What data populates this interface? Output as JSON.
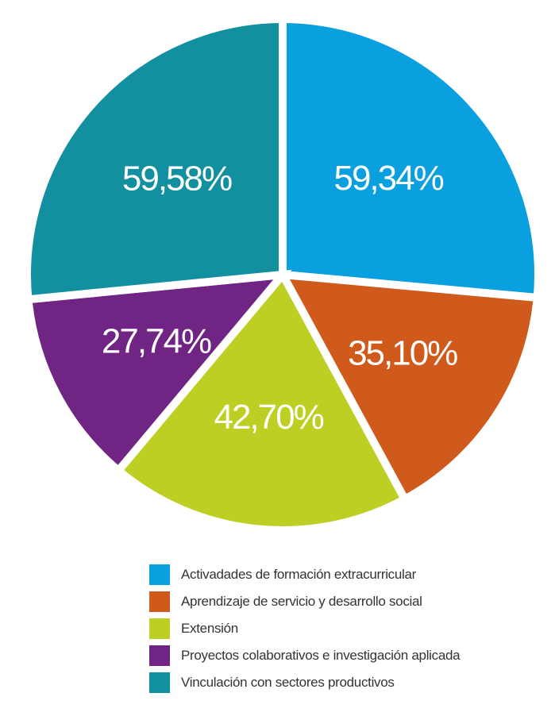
{
  "chart_data": {
    "type": "pie",
    "title": "",
    "categories": [
      "Activadades de formación extracurricular",
      "Aprendizaje de servicio y desarrollo social",
      "Extensión",
      "Proyectos colaborativos e investigación aplicada",
      "Vinculación con sectores productivos"
    ],
    "values": [
      59.34,
      35.1,
      42.7,
      27.74,
      59.58
    ],
    "labels": [
      "59,34%",
      "35,10%",
      "42,70%",
      "27,74%",
      "59,58%"
    ],
    "colors": [
      "#0aa0e0",
      "#cf5a1c",
      "#bccf22",
      "#702584",
      "#12909f"
    ],
    "legend_position": "bottom"
  }
}
